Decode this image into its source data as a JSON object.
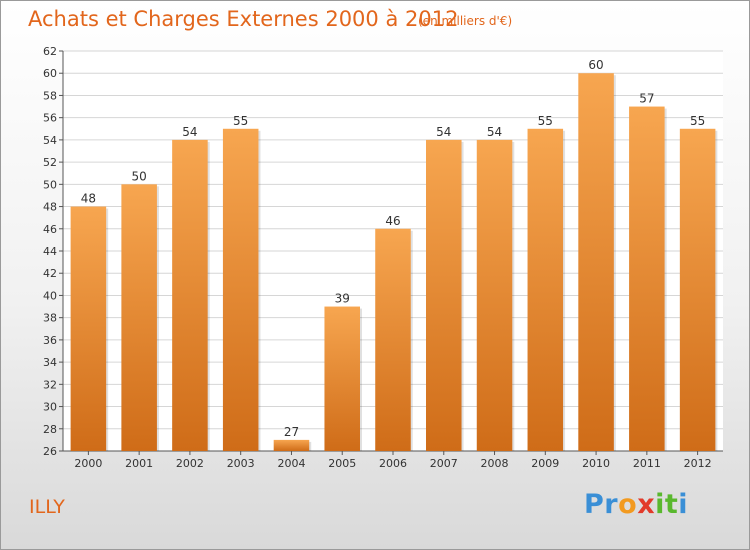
{
  "header": {
    "title": "Achats et Charges Externes 2000 à 2012",
    "subtitle": "(en milliers d'€)"
  },
  "footer": {
    "commune": "ILLY",
    "logo_letters": [
      {
        "char": "P",
        "color": "#3a8fd6"
      },
      {
        "char": "r",
        "color": "#3a8fd6"
      },
      {
        "char": "o",
        "color": "#f29a1f"
      },
      {
        "char": "x",
        "color": "#e23a2a"
      },
      {
        "char": "i",
        "color": "#59b82e"
      },
      {
        "char": "t",
        "color": "#59b82e"
      },
      {
        "char": "i",
        "color": "#3a8fd6"
      }
    ]
  },
  "chart_data": {
    "type": "bar",
    "categories": [
      "2000",
      "2001",
      "2002",
      "2003",
      "2004",
      "2005",
      "2006",
      "2007",
      "2008",
      "2009",
      "2010",
      "2011",
      "2012"
    ],
    "values": [
      48,
      50,
      54,
      55,
      27,
      39,
      46,
      54,
      54,
      55,
      60,
      57,
      55
    ],
    "value_labels": [
      "48",
      "50",
      "54",
      "55",
      "27",
      "39",
      "46",
      "54",
      "54",
      "55",
      "60",
      "57",
      "55"
    ],
    "ylim": [
      26,
      62
    ],
    "yticks": [
      "26",
      "28",
      "30",
      "32",
      "34",
      "36",
      "38",
      "40",
      "42",
      "44",
      "46",
      "48",
      "50",
      "52",
      "54",
      "56",
      "58",
      "60",
      "62"
    ],
    "grid": true,
    "legend": "none",
    "colors": {
      "bar_top": "#f7a650",
      "bar_bottom": "#cf6c18",
      "grid": "#d6d6d6",
      "plot_bg": "#ffffff"
    }
  }
}
